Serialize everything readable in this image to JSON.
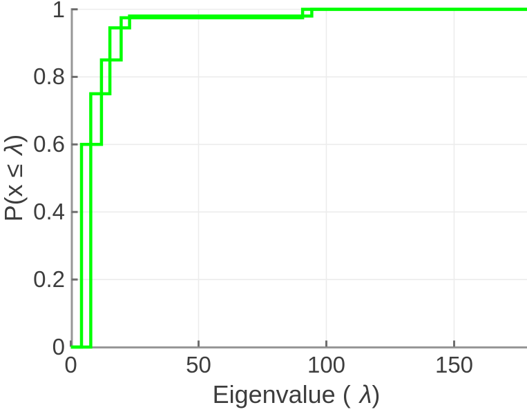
{
  "figure": {
    "background": "#ffffff",
    "axis_color": "#979797",
    "tick_color": "#6e6e6e",
    "grid_color": "#ececec",
    "text_color": "#3d3d3d"
  },
  "chart_data": {
    "type": "line",
    "subtype": "empirical-cdf-stairs",
    "title": "",
    "xlabel": {
      "pre": "Eigenvalue (",
      "symbol": "λ",
      "post": ")"
    },
    "ylabel": {
      "pre": "P(x ≤",
      "symbol": "λ",
      "post": ")"
    },
    "xlim": [
      0,
      178.6
    ],
    "ylim": [
      0,
      1
    ],
    "x_ticks": [
      0,
      50,
      100,
      150
    ],
    "y_ticks": [
      0,
      0.2,
      0.4,
      0.6,
      0.8,
      1
    ],
    "grid": true,
    "legend": null,
    "line_color": "#00ff00",
    "line_width": 4.5,
    "series": [
      {
        "name": "ecdf-curve-1",
        "steps": [
          [
            0,
            0
          ],
          [
            4.2,
            0
          ],
          [
            4.2,
            0.6
          ],
          [
            12,
            0.6
          ],
          [
            12,
            0.85
          ],
          [
            19.7,
            0.85
          ],
          [
            19.7,
            0.975
          ],
          [
            90.7,
            0.975
          ],
          [
            90.7,
            1
          ],
          [
            178.6,
            1
          ]
        ]
      },
      {
        "name": "ecdf-curve-2",
        "steps": [
          [
            0,
            0
          ],
          [
            7.8,
            0
          ],
          [
            7.8,
            0.75
          ],
          [
            15.3,
            0.75
          ],
          [
            15.3,
            0.945
          ],
          [
            23,
            0.945
          ],
          [
            23,
            0.98
          ],
          [
            94.3,
            0.98
          ],
          [
            94.3,
            1
          ],
          [
            178.6,
            1
          ]
        ]
      }
    ]
  }
}
